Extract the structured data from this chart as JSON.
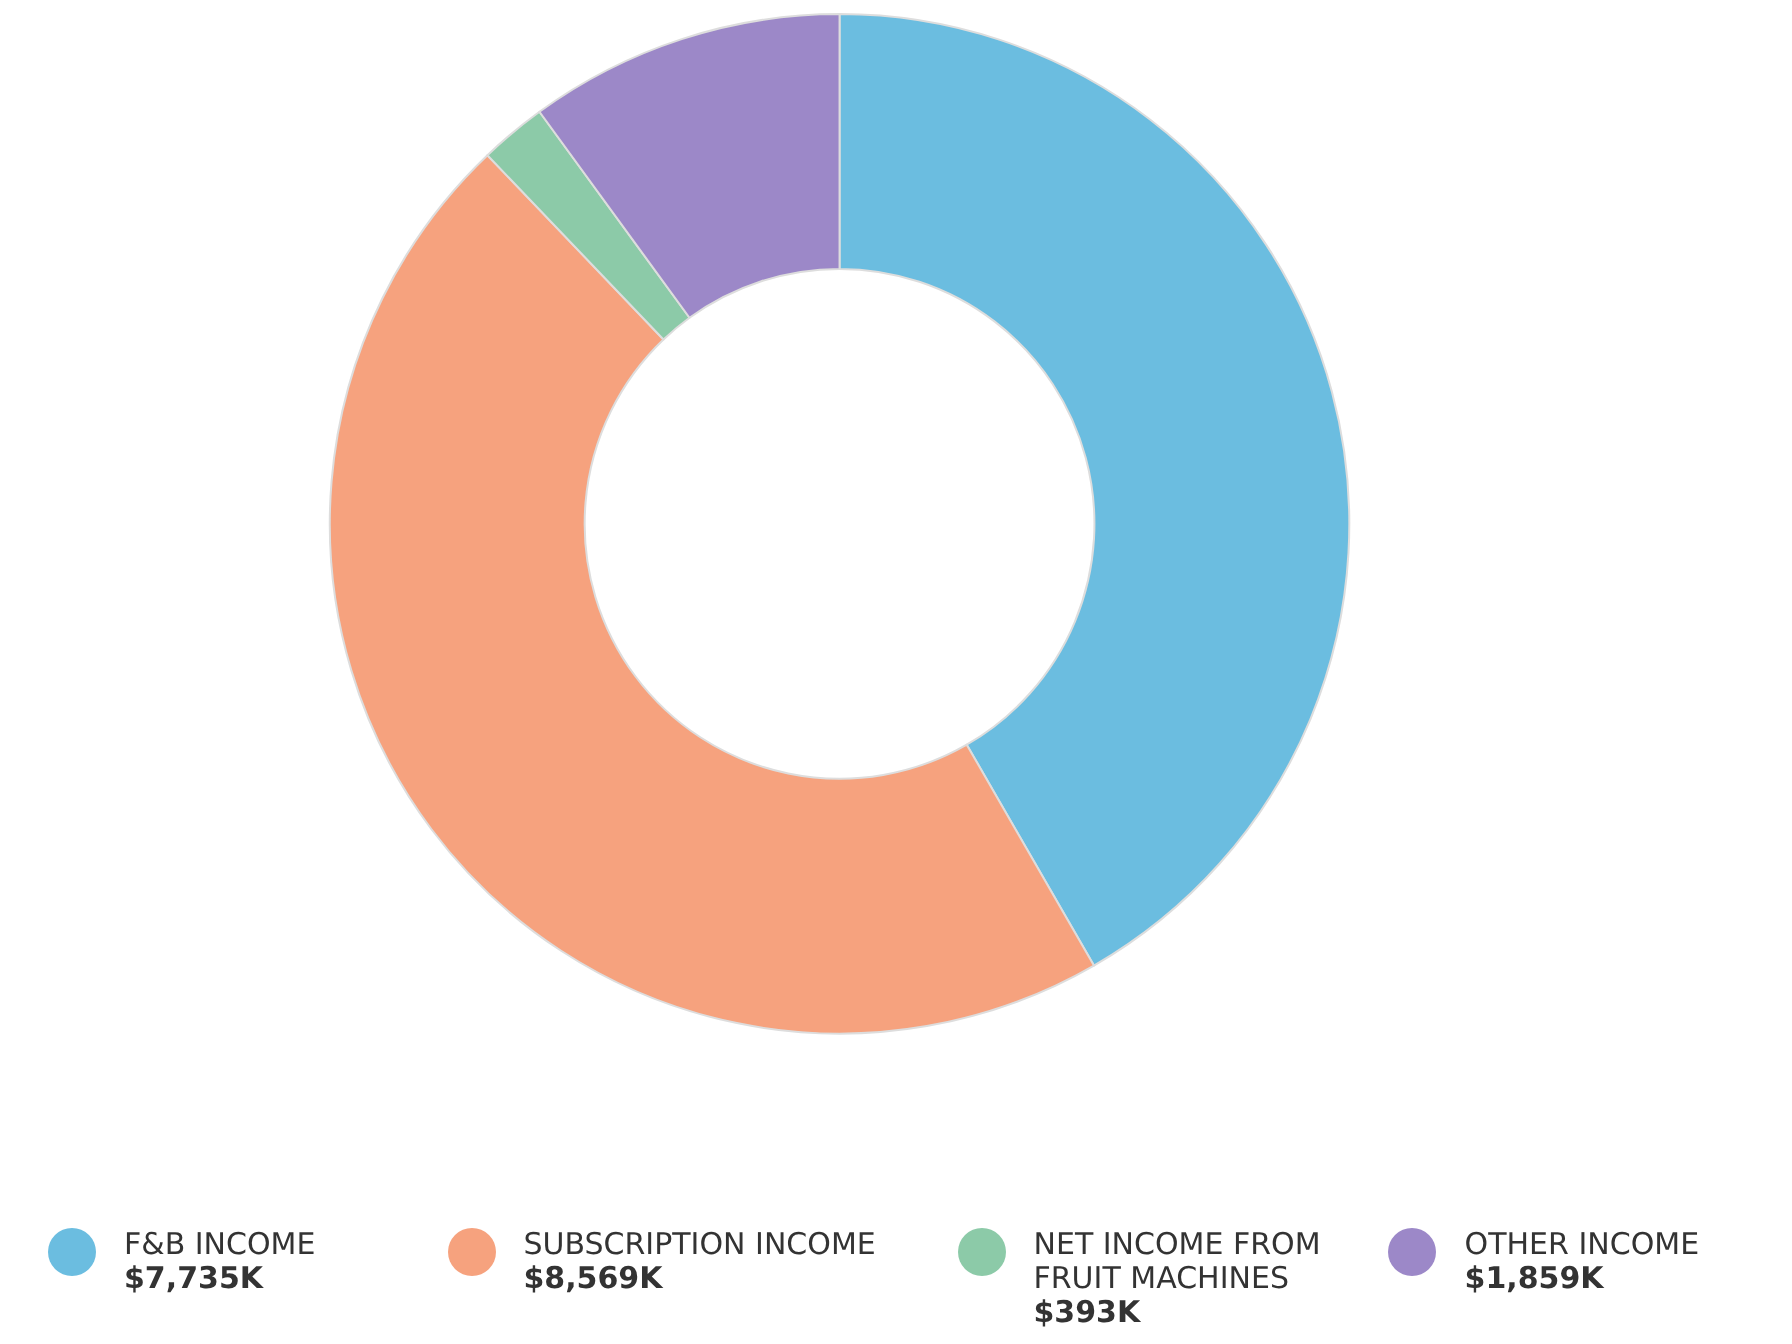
{
  "chart_data": {
    "type": "donut",
    "categories": [
      "F&B INCOME",
      "SUBSCRIPTION INCOME",
      "NET INCOME FROM FRUIT MACHINES",
      "OTHER INCOME"
    ],
    "values": [
      7735,
      8569,
      393,
      1859
    ],
    "value_labels": [
      "$7,735K",
      "$8,569K",
      "$393K",
      "$1,859K"
    ],
    "colors": [
      "#6bbde0",
      "#f6a27e",
      "#8ccaa8",
      "#9c88c8"
    ],
    "legend": "bottom"
  }
}
